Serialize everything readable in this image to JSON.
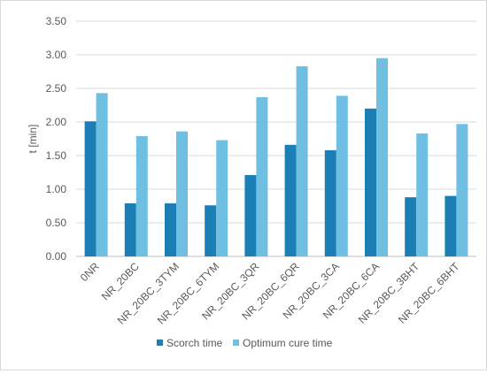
{
  "chart_data": {
    "type": "bar",
    "title": "",
    "xlabel": "",
    "ylabel": "t [min]",
    "ylim": [
      0,
      3.5
    ],
    "ytick_step": 0.5,
    "y_tick_labels": [
      "0.00",
      "0.50",
      "1.00",
      "1.50",
      "2.00",
      "2.50",
      "3.00",
      "3.50"
    ],
    "grid": true,
    "legend_position": "bottom",
    "categories": [
      "0NR",
      "NR_20BC",
      "NR_20BC_3TYM",
      "NR_20BC_6TYM",
      "NR_20BC_3QR",
      "NR_20BC_6QR",
      "NR_20BC_3CA",
      "NR_20BC_6CA",
      "NR_20BC_3BHT",
      "NR_20BC_6BHT"
    ],
    "series": [
      {
        "name": "Scorch time",
        "color": "#1b7fb5",
        "values": [
          2.01,
          0.79,
          0.79,
          0.76,
          1.21,
          1.66,
          1.58,
          2.2,
          0.88,
          0.9
        ]
      },
      {
        "name": "Optimum cure time",
        "color": "#6fbfe3",
        "values": [
          2.43,
          1.79,
          1.86,
          1.73,
          2.37,
          2.83,
          2.39,
          2.95,
          1.83,
          1.97
        ]
      }
    ]
  }
}
